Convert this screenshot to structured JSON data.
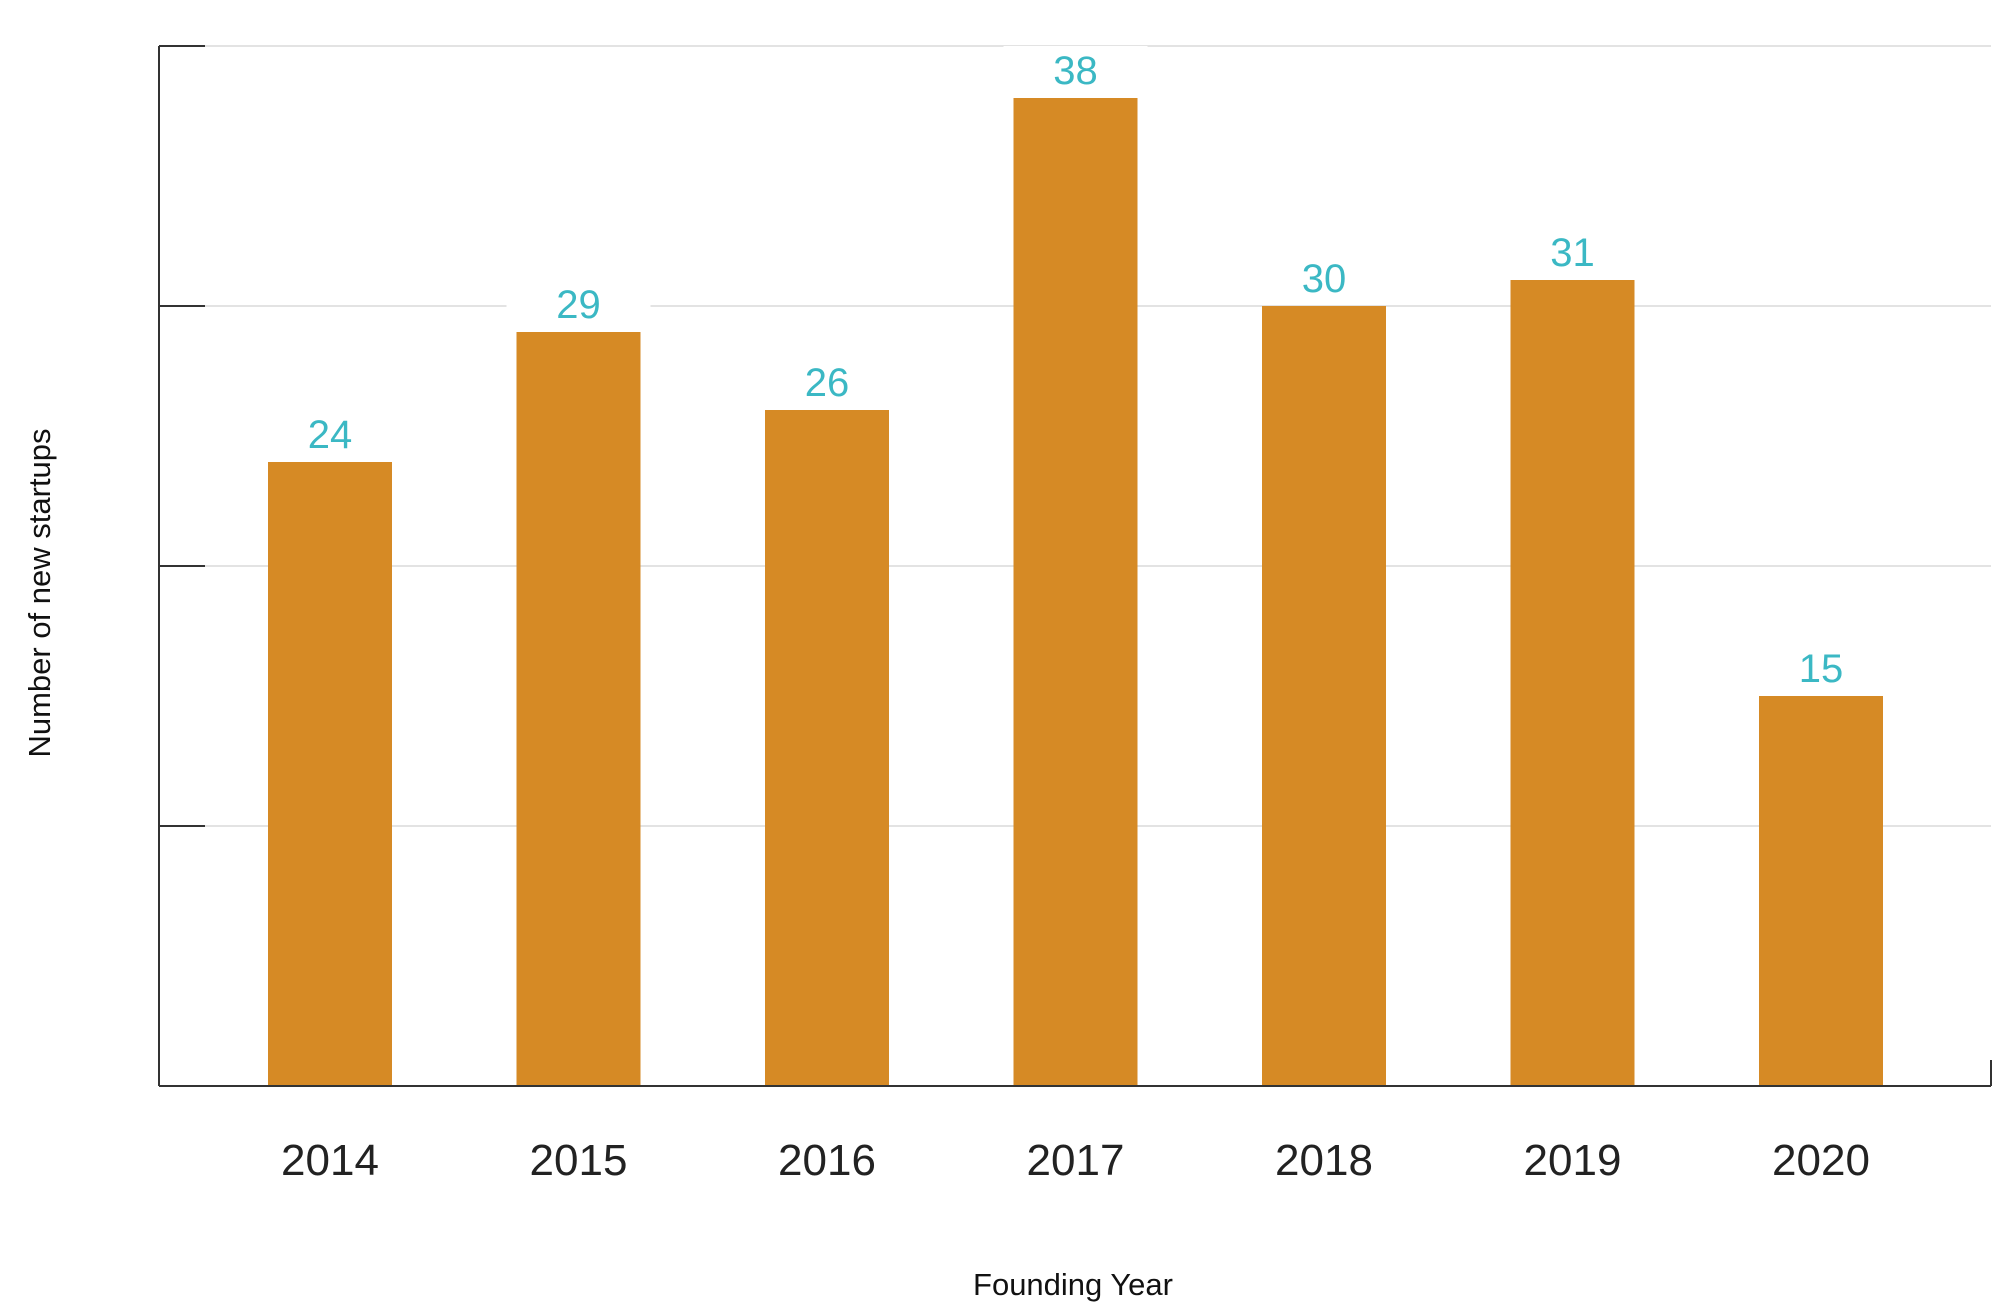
{
  "chart_data": {
    "type": "bar",
    "categories": [
      "2014",
      "2015",
      "2016",
      "2017",
      "2018",
      "2019",
      "2020"
    ],
    "values": [
      24,
      29,
      26,
      38,
      30,
      31,
      15
    ],
    "xlabel": "Founding Year",
    "ylabel": "Number of new startups",
    "ylim": [
      0,
      40
    ],
    "y_tick_step": 10,
    "y_tick_labels_shown": false,
    "data_labels": true,
    "grid": "horizontal",
    "legend": "none",
    "colors": {
      "bar": "#d68a25",
      "data_label": "#3bb8c4",
      "grid": "#e3e3e3",
      "axis": "#333333"
    }
  }
}
